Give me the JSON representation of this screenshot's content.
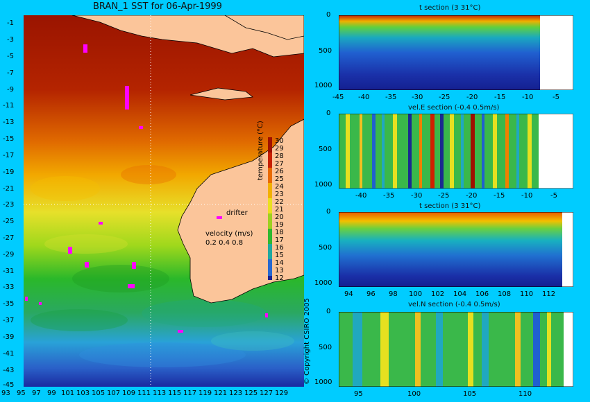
{
  "map": {
    "title": "BRAN_1 SST for 06-Apr-1999",
    "lat_labels": [
      "-1",
      "-3",
      "-5",
      "-7",
      "-9",
      "-11",
      "-13",
      "-15",
      "-17",
      "-19",
      "-21",
      "-23",
      "-25",
      "-27",
      "-29",
      "-31",
      "-33",
      "-35",
      "-37",
      "-39",
      "-41",
      "-43",
      "-45"
    ],
    "lon_labels": [
      "93",
      "95",
      "97",
      "99",
      "101",
      "103",
      "105",
      "107",
      "109",
      "111",
      "113",
      "115",
      "117",
      "119",
      "121",
      "123",
      "125",
      "127",
      "129"
    ],
    "colorbar_labels": [
      "30",
      "29",
      "28",
      "27",
      "26",
      "25",
      "24",
      "23",
      "22",
      "21",
      "20",
      "19",
      "18",
      "17",
      "16",
      "15",
      "14",
      "13",
      "12"
    ],
    "colorbar_title": "temperature (°C)",
    "drifter_label": "drifter",
    "velocity_label": "velocity (m/s)",
    "velocity_scale": "0.2 0.4 0.8",
    "copyright": "© Copyright CSIRO 2005"
  },
  "panels": [
    {
      "title": "t section (3      31°C)",
      "depth_labels": [
        "0",
        "500",
        "1000"
      ],
      "x_labels": [
        "-45",
        "-40",
        "-35",
        "-30",
        "-25",
        "-20",
        "-15",
        "-10",
        "-5"
      ]
    },
    {
      "title": "vel.E section (-0.4      0.5m/s)",
      "depth_labels": [
        "0",
        "500",
        "1000"
      ],
      "x_labels": [
        "-40",
        "-35",
        "-30",
        "-25",
        "-20",
        "-15",
        "-10",
        "-5"
      ]
    },
    {
      "title": "t section (3      31°C)",
      "depth_labels": [
        "0",
        "500",
        "1000"
      ],
      "x_labels": [
        "94",
        "96",
        "98",
        "100",
        "102",
        "104",
        "106",
        "108",
        "110",
        "112"
      ]
    },
    {
      "title": "vel.N section (-0.4      0.5m/s)",
      "depth_labels": [
        "0",
        "500",
        "1000"
      ],
      "x_labels": [
        "95",
        "100",
        "105",
        "110"
      ]
    }
  ]
}
